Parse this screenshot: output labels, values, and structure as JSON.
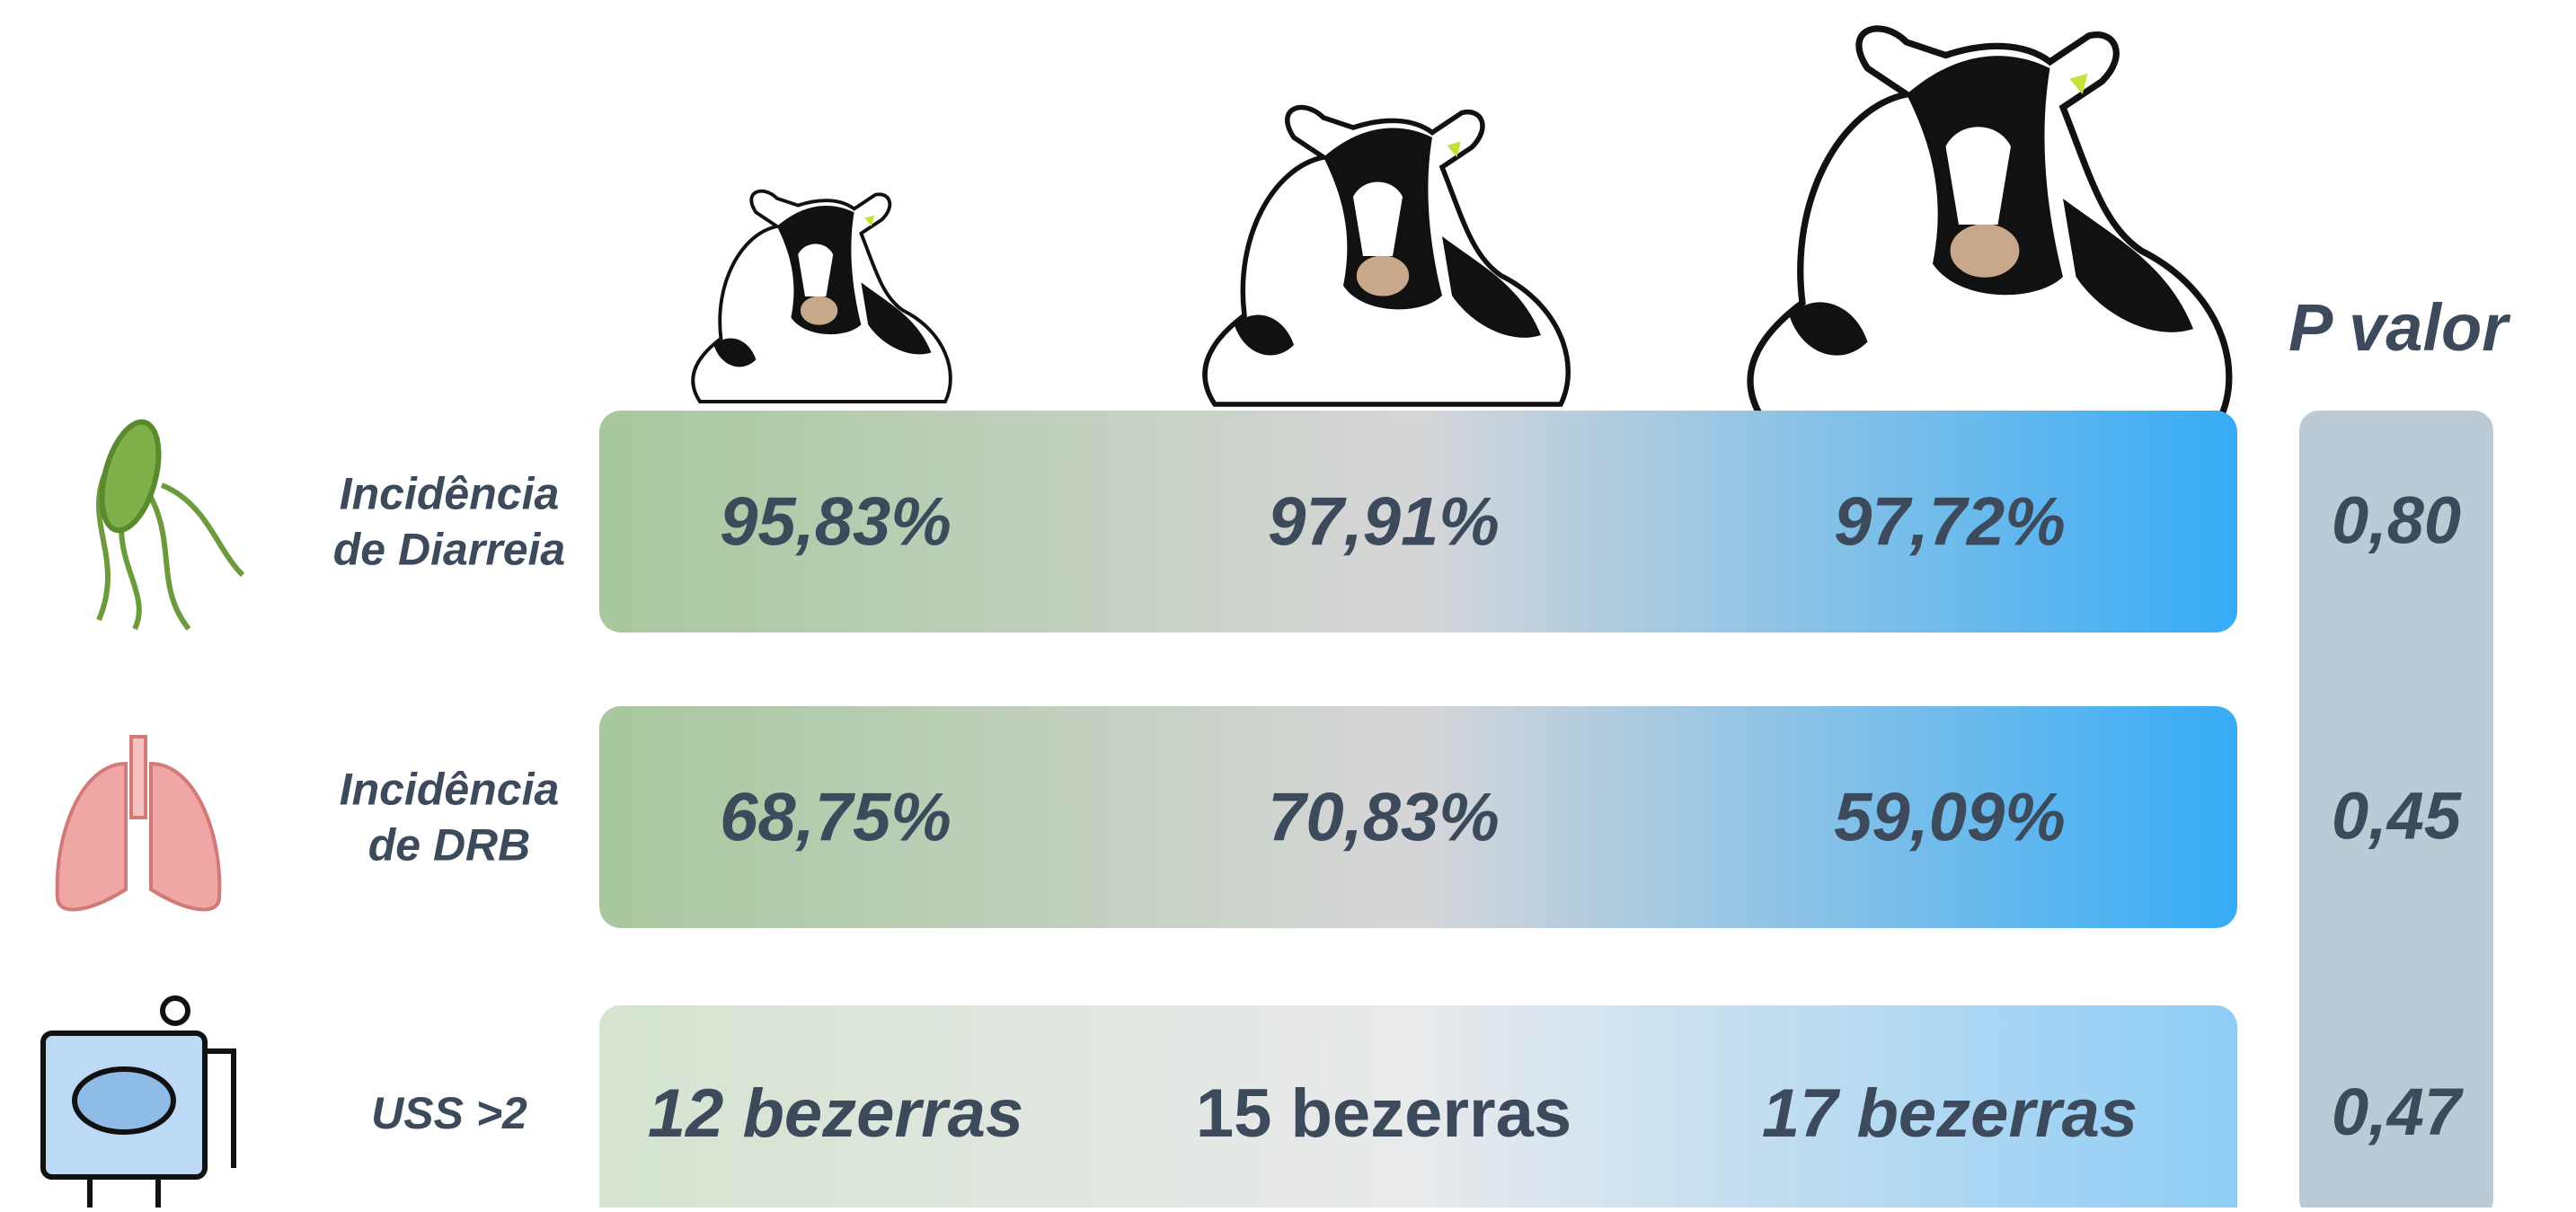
{
  "header": {
    "p_value_title": "P valor"
  },
  "rows": [
    {
      "label": [
        "Incidência",
        "de Diarreia"
      ],
      "values": [
        "95,83%",
        "97,91%",
        "97,72%"
      ],
      "p_value": "0,80"
    },
    {
      "label": [
        "Incidência",
        "de DRB"
      ],
      "values": [
        "68,75%",
        "70,83%",
        "59,09%"
      ],
      "p_value": "0,45"
    },
    {
      "label": [
        "USS >2"
      ],
      "values": [
        "12 bezerras",
        "15 bezerras",
        "17 bezerras"
      ],
      "p_value": "0,47"
    }
  ]
}
